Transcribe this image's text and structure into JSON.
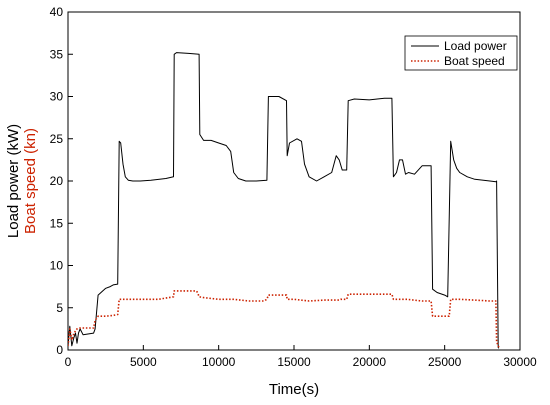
{
  "chart_data": {
    "type": "line",
    "xlabel": "Time(s)",
    "ylabel_parts": [
      {
        "text": "Load power (kW)",
        "color": "#000000"
      },
      {
        "text": "Boat speed (kn)",
        "color": "#cc2200"
      }
    ],
    "xlim": [
      0,
      30000
    ],
    "ylim": [
      0,
      40
    ],
    "xticks": [
      "0",
      "5000",
      "10000",
      "15000",
      "20000",
      "25000",
      "30000"
    ],
    "yticks": [
      "0",
      "5",
      "10",
      "15",
      "20",
      "25",
      "30",
      "35",
      "40"
    ],
    "legend_position": "top-right",
    "series": [
      {
        "name": "Load power",
        "color": "#000000",
        "style": "solid",
        "x": [
          0,
          120,
          250,
          400,
          500,
          600,
          700,
          800,
          1000,
          1700,
          1800,
          2000,
          2500,
          2800,
          3000,
          3300,
          3400,
          3500,
          3650,
          3800,
          4000,
          4300,
          4800,
          5500,
          6500,
          7000,
          7050,
          7200,
          8000,
          8700,
          8750,
          9000,
          9500,
          10000,
          10500,
          10800,
          11000,
          11300,
          11800,
          12500,
          13200,
          13300,
          13500,
          14000,
          14500,
          14550,
          14700,
          15200,
          15500,
          15700,
          16000,
          16500,
          17000,
          17500,
          17800,
          18000,
          18200,
          18500,
          18600,
          19000,
          20000,
          21000,
          21500,
          21600,
          21800,
          22000,
          22200,
          22400,
          22600,
          23000,
          23500,
          24100,
          24200,
          24500,
          25000,
          25200,
          25400,
          25600,
          25800,
          26000,
          26500,
          27000,
          28000,
          28400,
          28450,
          28550,
          28600
        ],
        "values": [
          0.5,
          2.8,
          0.5,
          1.5,
          2.0,
          0.8,
          2.0,
          2.5,
          1.8,
          2.0,
          2.5,
          6.5,
          7.3,
          7.5,
          7.7,
          7.8,
          24.7,
          24.5,
          22.0,
          20.5,
          20.1,
          20.0,
          20.0,
          20.1,
          20.3,
          20.5,
          35.0,
          35.2,
          35.1,
          35.0,
          25.5,
          24.8,
          24.8,
          24.5,
          24.2,
          23.5,
          21.0,
          20.3,
          20.0,
          20.0,
          20.1,
          30.0,
          30.0,
          30.0,
          29.5,
          23.0,
          24.5,
          25.0,
          24.7,
          22.0,
          20.5,
          20.0,
          20.5,
          21.0,
          23.0,
          22.5,
          21.3,
          21.3,
          29.5,
          29.7,
          29.6,
          29.8,
          29.8,
          20.5,
          21.0,
          22.5,
          22.5,
          20.8,
          21.0,
          20.8,
          21.8,
          21.8,
          7.2,
          6.8,
          6.5,
          6.3,
          24.7,
          22.5,
          21.5,
          21.0,
          20.5,
          20.2,
          20.0,
          19.9,
          20.0,
          0.3,
          0.2
        ]
      },
      {
        "name": "Boat speed",
        "color": "#cc2200",
        "style": "dotted",
        "x": [
          0,
          120,
          250,
          400,
          600,
          800,
          1700,
          1800,
          2000,
          2500,
          3000,
          3300,
          3400,
          4000,
          5000,
          6000,
          7000,
          7050,
          8500,
          8600,
          8700,
          9000,
          10000,
          11000,
          12000,
          13000,
          13200,
          13300,
          14500,
          14550,
          15000,
          16000,
          17000,
          18000,
          18100,
          18500,
          18600,
          21000,
          21500,
          21600,
          22500,
          23500,
          24100,
          24200,
          25300,
          25400,
          26000,
          27000,
          28000,
          28400,
          28450,
          28550,
          28600
        ],
        "values": [
          0.5,
          2.5,
          1.2,
          2.0,
          2.5,
          2.6,
          2.6,
          3.5,
          4.0,
          4.0,
          4.1,
          4.2,
          6.0,
          6.0,
          6.0,
          6.0,
          6.3,
          7.0,
          7.0,
          6.8,
          6.3,
          6.2,
          6.0,
          6.0,
          5.8,
          5.8,
          6.0,
          6.5,
          6.5,
          6.0,
          6.0,
          5.8,
          5.9,
          5.9,
          6.0,
          6.0,
          6.6,
          6.6,
          6.6,
          6.0,
          6.0,
          5.8,
          5.8,
          4.0,
          4.0,
          6.0,
          6.0,
          5.9,
          5.8,
          5.8,
          1.0,
          0.5,
          0.3
        ]
      }
    ]
  }
}
